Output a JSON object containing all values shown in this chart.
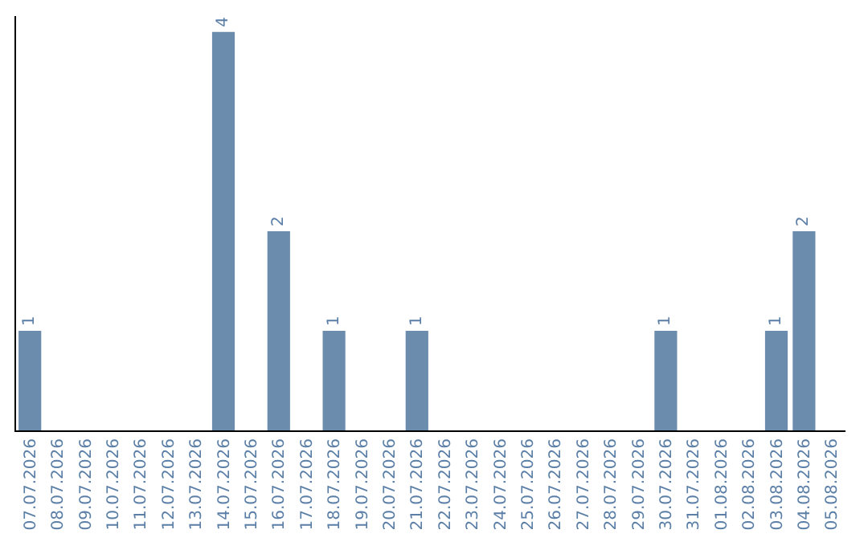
{
  "chart_data": {
    "type": "bar",
    "categories": [
      "07.07.2026",
      "08.07.2026",
      "09.07.2026",
      "10.07.2026",
      "11.07.2026",
      "12.07.2026",
      "13.07.2026",
      "14.07.2026",
      "15.07.2026",
      "16.07.2026",
      "17.07.2026",
      "18.07.2026",
      "19.07.2026",
      "20.07.2026",
      "21.07.2026",
      "22.07.2026",
      "23.07.2026",
      "24.07.2026",
      "25.07.2026",
      "26.07.2026",
      "27.07.2026",
      "28.07.2026",
      "29.07.2026",
      "30.07.2026",
      "31.07.2026",
      "01.08.2026",
      "02.08.2026",
      "03.08.2026",
      "04.08.2026",
      "05.08.2026"
    ],
    "values": [
      1,
      0,
      0,
      0,
      0,
      0,
      0,
      4,
      0,
      2,
      0,
      1,
      0,
      0,
      1,
      0,
      0,
      0,
      0,
      0,
      0,
      0,
      0,
      1,
      0,
      0,
      0,
      1,
      2,
      0
    ],
    "value_labels": [
      "1",
      null,
      null,
      null,
      null,
      null,
      null,
      "4",
      null,
      "2",
      null,
      "1",
      null,
      null,
      "1",
      null,
      null,
      null,
      null,
      null,
      null,
      null,
      null,
      "1",
      null,
      null,
      null,
      "1",
      "2",
      null
    ],
    "color": "#6b8cac",
    "tick_labels": "x",
    "legend": false
  }
}
